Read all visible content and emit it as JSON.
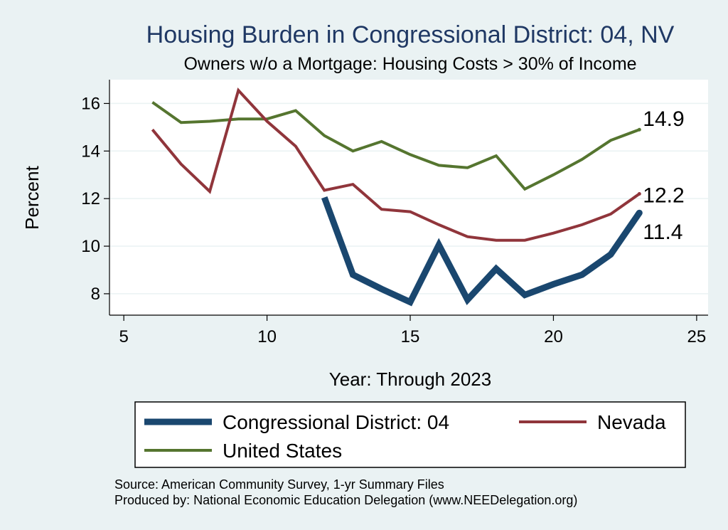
{
  "chart_data": {
    "type": "line",
    "title": "Housing Burden in Congressional District:  04, NV",
    "subtitle": "Owners w/o a Mortgage: Housing Costs > 30% of Income",
    "xlabel": "Year: Through 2023",
    "ylabel": "Percent",
    "xlim": [
      4.5,
      25.4
    ],
    "ylim": [
      7.1,
      17.0
    ],
    "xticks": [
      5,
      10,
      15,
      20,
      25
    ],
    "yticks": [
      8,
      10,
      12,
      14,
      16
    ],
    "grid": true,
    "legend_position": "bottom",
    "series": [
      {
        "name": "Congressional District:  04",
        "color": "#1a476f",
        "width": 9,
        "end_label": "11.4",
        "x": [
          12,
          13,
          14,
          15,
          16,
          17,
          18,
          19,
          20,
          21,
          22,
          23
        ],
        "y": [
          12.05,
          8.8,
          8.2,
          7.65,
          10.05,
          7.75,
          9.05,
          7.95,
          8.4,
          8.8,
          9.65,
          11.4
        ]
      },
      {
        "name": "Nevada",
        "color": "#90353b",
        "width": 4,
        "end_label": "12.2",
        "x": [
          6,
          7,
          8,
          9,
          10,
          11,
          12,
          13,
          14,
          15,
          16,
          17,
          18,
          19,
          20,
          21,
          22,
          23
        ],
        "y": [
          14.9,
          13.45,
          12.3,
          16.55,
          15.25,
          14.2,
          12.35,
          12.6,
          11.55,
          11.45,
          10.9,
          10.4,
          10.25,
          10.25,
          10.55,
          10.9,
          11.35,
          12.2
        ]
      },
      {
        "name": "United States",
        "color": "#55752f",
        "width": 4,
        "end_label": "14.9",
        "x": [
          6,
          7,
          8,
          9,
          10,
          11,
          12,
          13,
          14,
          15,
          16,
          17,
          18,
          19,
          20,
          21,
          22,
          23
        ],
        "y": [
          16.05,
          15.2,
          15.25,
          15.35,
          15.35,
          15.7,
          14.65,
          14.0,
          14.4,
          13.85,
          13.4,
          13.3,
          13.8,
          12.4,
          13.0,
          13.65,
          14.45,
          14.9
        ]
      }
    ]
  },
  "source": {
    "line1": "Source: American Community Survey, 1-yr Summary Files",
    "line2": "Produced by: National Economic Education Delegation (www.NEEDelegation.org)"
  }
}
